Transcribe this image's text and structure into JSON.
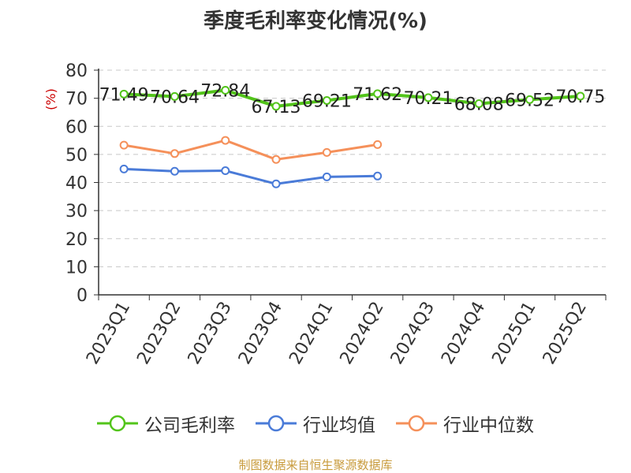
{
  "chart_data": {
    "type": "line",
    "title": "季度毛利率变化情况(%)",
    "ylabel": "(%)",
    "xlabel": "",
    "ylim": [
      0,
      80
    ],
    "yticks": [
      0,
      10,
      20,
      30,
      40,
      50,
      60,
      70,
      80
    ],
    "categories": [
      "2023Q1",
      "2023Q2",
      "2023Q3",
      "2023Q4",
      "2024Q1",
      "2024Q2",
      "2024Q3",
      "2024Q4",
      "2025Q1",
      "2025Q2"
    ],
    "grid": true,
    "legend_position": "bottom",
    "series": [
      {
        "name": "公司毛利率",
        "color": "#52c41a",
        "values": [
          71.49,
          70.64,
          72.84,
          67.13,
          69.21,
          71.62,
          70.21,
          68.08,
          69.52,
          70.75
        ],
        "labels": [
          "71.49",
          "70.64",
          "72.84",
          "67.13",
          "69.21",
          "71.62",
          "70.21",
          "68.08",
          "69.52",
          "70.75"
        ]
      },
      {
        "name": "行业均值",
        "color": "#4a7bd8",
        "values": [
          44.8,
          44.0,
          44.2,
          39.5,
          42.0,
          42.3,
          null,
          null,
          null,
          null
        ]
      },
      {
        "name": "行业中位数",
        "color": "#f5905a",
        "values": [
          53.3,
          50.3,
          55.0,
          48.2,
          50.7,
          53.5,
          null,
          null,
          null,
          null
        ]
      }
    ]
  },
  "footer": {
    "source": "制图数据来自恒生聚源数据库"
  }
}
